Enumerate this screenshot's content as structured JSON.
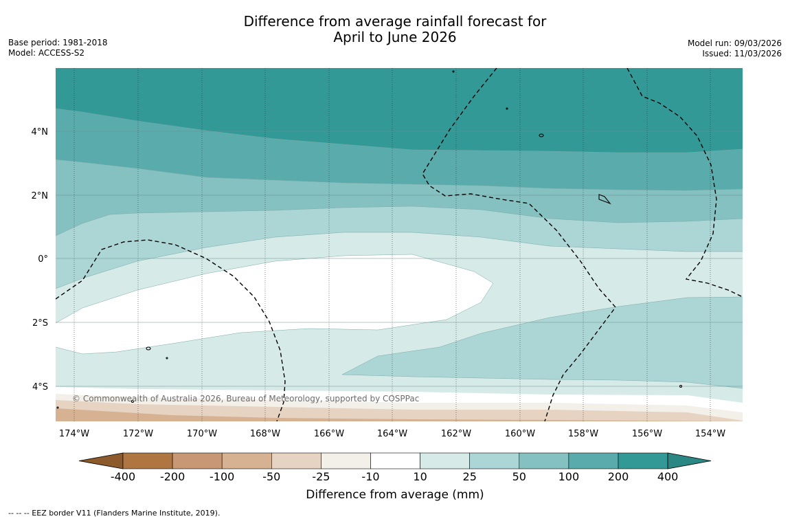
{
  "title": {
    "line1": "Difference from average rainfall forecast for",
    "line2": "April to June 2026"
  },
  "meta_left": {
    "base_period": "Base period: 1981-2018",
    "model": "Model: ACCESS-S2"
  },
  "meta_right": {
    "model_run": "Model run: 09/03/2026",
    "issued": "Issued: 11/03/2026"
  },
  "map": {
    "lat_labels": [
      "4°N",
      "2°N",
      "0°",
      "2°S",
      "4°S"
    ],
    "lon_labels": [
      "174°W",
      "172°W",
      "170°W",
      "168°W",
      "166°W",
      "164°W",
      "162°W",
      "160°W",
      "158°W",
      "156°W",
      "154°W"
    ],
    "copyright": "© Commonwealth of Australia 2026, Bureau of Meteorology, supported by COSPPac"
  },
  "legend": {
    "title": "Difference from average (mm)",
    "ticks": [
      "-400",
      "-200",
      "-100",
      "-50",
      "-25",
      "-10",
      "10",
      "25",
      "50",
      "100",
      "200",
      "400"
    ],
    "colors": [
      "#8c5a2b",
      "#b07642",
      "#c79873",
      "#d6b293",
      "#e6d3c2",
      "#f3efe9",
      "#ffffff",
      "#d6eae8",
      "#acd6d5",
      "#85c1c0",
      "#5aabab",
      "#339996",
      "#2a8784"
    ]
  },
  "footer": "--  --  -- EEZ border V11 (Flanders Marine Institute, 2019)."
}
